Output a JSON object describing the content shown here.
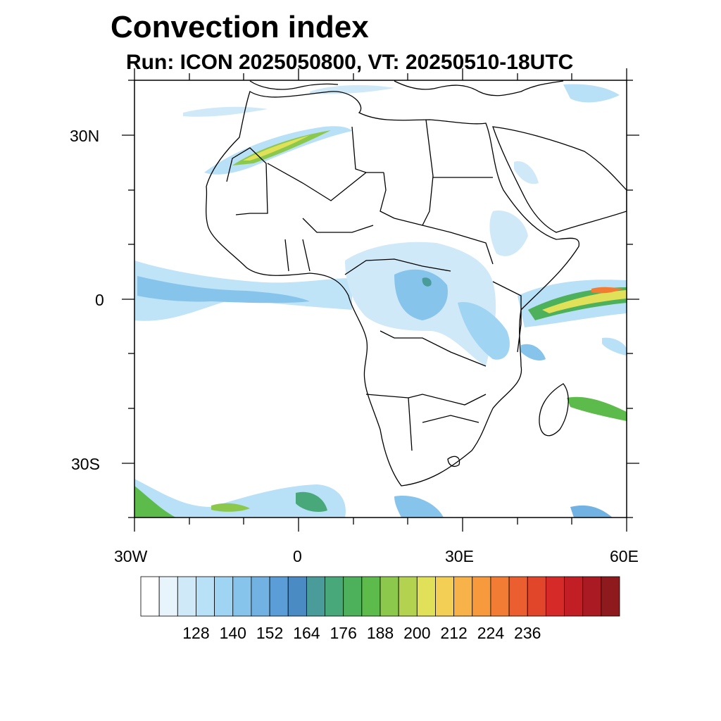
{
  "title": "Convection index",
  "subtitle": "Run: ICON 2025050800,  VT: 20250510-18UTC",
  "map": {
    "lon_range": [
      -30,
      60
    ],
    "lat_range": [
      -40,
      40
    ],
    "lat_tick_labels": [
      "30N",
      "0",
      "30S"
    ],
    "lon_tick_labels": [
      "30W",
      "0",
      "30E",
      "60E"
    ]
  },
  "colorbar": {
    "colors": [
      "#ffffff",
      "#e8f4fb",
      "#cfe9f8",
      "#b8e0f6",
      "#9fd4f2",
      "#87c4eb",
      "#72b2e2",
      "#5b9dd6",
      "#4a8bc4",
      "#4a9c9a",
      "#49a87a",
      "#4db05a",
      "#5cbb4a",
      "#8cc84c",
      "#b3d250",
      "#e0e158",
      "#f4cf55",
      "#f7b24a",
      "#f79a3e",
      "#f37c35",
      "#ea5e2f",
      "#e1452a",
      "#d52a27",
      "#c21e26",
      "#aa1a22",
      "#8e1a1d"
    ],
    "tick_labels": [
      "128",
      "140",
      "152",
      "164",
      "176",
      "188",
      "200",
      "212",
      "224",
      "236"
    ]
  }
}
